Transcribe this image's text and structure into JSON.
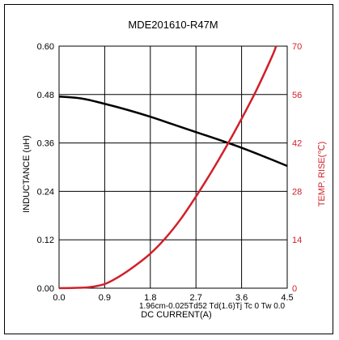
{
  "chart_data": {
    "type": "line",
    "title": "MDE201610-R47M",
    "xlabel": "DC CURRENT(A)",
    "ylabel": "INDUCTANCE (uH)",
    "ylabel_right": "TEMP. RISE(℃)",
    "x_ticks": [
      "0.0",
      "0.9",
      "1.8",
      "2.7",
      "3.6",
      "4.5"
    ],
    "y_ticks": [
      "0.00",
      "0.12",
      "0.24",
      "0.36",
      "0.48",
      "0.60"
    ],
    "y2_ticks": [
      "0",
      "14",
      "28",
      "42",
      "56",
      "70"
    ],
    "xlim": [
      0,
      4.5
    ],
    "ylim": [
      0,
      0.6
    ],
    "y2lim": [
      0,
      70
    ],
    "grid": true,
    "overlay_text": "1.96cm-0.025Td52 Td(1.6)Tj Tc 0 Tw 0.0",
    "series": [
      {
        "name": "INDUCTANCE",
        "axis": "left",
        "color": "#000000",
        "x": [
          0.0,
          0.45,
          0.9,
          1.35,
          1.8,
          2.25,
          2.7,
          3.15,
          3.6,
          4.05,
          4.5
        ],
        "y": [
          0.475,
          0.47,
          0.457,
          0.442,
          0.425,
          0.406,
          0.387,
          0.368,
          0.348,
          0.326,
          0.303
        ]
      },
      {
        "name": "TEMP. RISE",
        "axis": "right",
        "color": "#d0202a",
        "x": [
          0.0,
          0.3,
          0.6,
          0.9,
          1.2,
          1.5,
          1.8,
          2.1,
          2.4,
          2.7,
          3.0,
          3.3,
          3.6,
          3.9,
          4.2,
          4.28
        ],
        "y": [
          0,
          0.1,
          0.3,
          1.2,
          3.5,
          6.5,
          10,
          14.5,
          20,
          26.5,
          33.5,
          41,
          49,
          57.5,
          67,
          70
        ]
      }
    ]
  }
}
